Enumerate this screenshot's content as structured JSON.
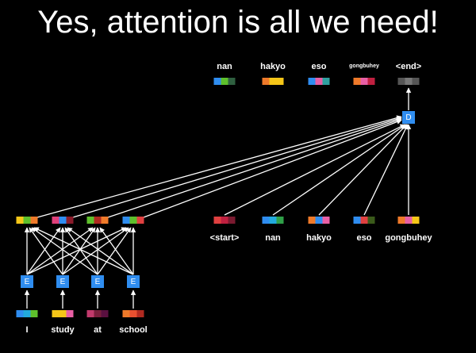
{
  "title": "Yes, attention is all we need!",
  "colors": {
    "arrow": "#ffffff",
    "block": "#2f8df0",
    "background": "#000000"
  },
  "encoder": {
    "inputs": [
      {
        "word": "I",
        "embedding": [
          "#2f8df0",
          "#22aadd",
          "#5ec02c"
        ]
      },
      {
        "word": "study",
        "embedding": [
          "#f5c618",
          "#f5c618",
          "#e85fa5"
        ]
      },
      {
        "word": "at",
        "embedding": [
          "#c23a6c",
          "#7a1f3c",
          "#5a1040"
        ]
      },
      {
        "word": "school",
        "embedding": [
          "#ef7a2a",
          "#e85030",
          "#b02a20"
        ]
      }
    ],
    "block_label": "E",
    "outputs": [
      [
        "#f5c618",
        "#5ec02c",
        "#ef7a2a"
      ],
      [
        "#e0407a",
        "#2f8df0",
        "#8a1a2a"
      ],
      [
        "#5ec02c",
        "#b02a20",
        "#ef7a2a"
      ],
      [
        "#2f8df0",
        "#5ec02c",
        "#e04040"
      ]
    ]
  },
  "decoder": {
    "block_label": "D",
    "inputs": [
      {
        "word": "<start>",
        "embedding": [
          "#e04040",
          "#c02040",
          "#7a1a30"
        ]
      },
      {
        "word": "nan",
        "embedding": [
          "#2f8df0",
          "#22aadd",
          "#2fa048"
        ]
      },
      {
        "word": "hakyo",
        "embedding": [
          "#ef7a2a",
          "#2f8df0",
          "#e85fa5"
        ]
      },
      {
        "word": "eso",
        "embedding": [
          "#2f8df0",
          "#e04040",
          "#3a5a1a"
        ]
      },
      {
        "word": "gongbuhey",
        "embedding": [
          "#ef7a2a",
          "#e85fa5",
          "#f5c618"
        ]
      }
    ],
    "outputs": [
      {
        "word": "nan",
        "embedding": [
          "#2f8df0",
          "#5ec02c",
          "#2f6040"
        ]
      },
      {
        "word": "hakyo",
        "embedding": [
          "#ef7a2a",
          "#f5c618",
          "#f5c618"
        ]
      },
      {
        "word": "eso",
        "embedding": [
          "#2f8df0",
          "#e85fa5",
          "#2fa0a0"
        ]
      },
      {
        "word": "gongbuhey",
        "embedding": [
          "#ef7a2a",
          "#e85fa5",
          "#c02040"
        ]
      },
      {
        "word": "<end>",
        "embedding": [
          "#555555",
          "#777777",
          "#555555"
        ]
      }
    ]
  }
}
